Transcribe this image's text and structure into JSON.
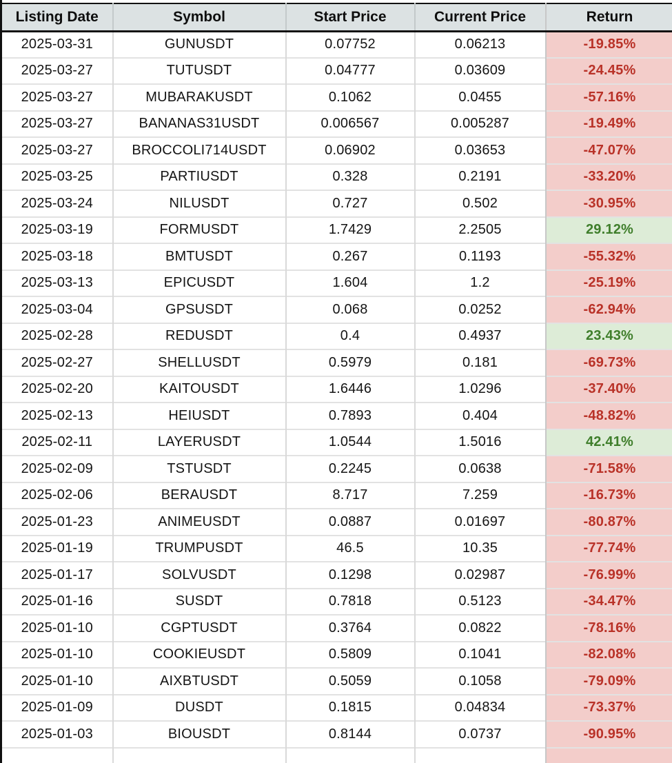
{
  "colors": {
    "header_bg": "#dce2e3",
    "negative_bg": "#f3cdca",
    "negative_text": "#b93228",
    "positive_bg": "#ddecd7",
    "positive_text": "#3f7e2b",
    "grid_line": "#d9d9d9",
    "header_border": "#111111",
    "body_text": "#141414"
  },
  "table": {
    "columns": [
      {
        "id": "listing_date",
        "label": "Listing Date"
      },
      {
        "id": "symbol",
        "label": "Symbol"
      },
      {
        "id": "start_price",
        "label": "Start Price"
      },
      {
        "id": "current_price",
        "label": "Current Price"
      },
      {
        "id": "return",
        "label": "Return"
      }
    ],
    "rows": [
      {
        "listing_date": "2025-03-31",
        "symbol": "GUNUSDT",
        "start_price": "0.07752",
        "current_price": "0.06213",
        "return": "-19.85%",
        "direction": "negative"
      },
      {
        "listing_date": "2025-03-27",
        "symbol": "TUTUSDT",
        "start_price": "0.04777",
        "current_price": "0.03609",
        "return": "-24.45%",
        "direction": "negative"
      },
      {
        "listing_date": "2025-03-27",
        "symbol": "MUBARAKUSDT",
        "start_price": "0.1062",
        "current_price": "0.0455",
        "return": "-57.16%",
        "direction": "negative"
      },
      {
        "listing_date": "2025-03-27",
        "symbol": "BANANAS31USDT",
        "start_price": "0.006567",
        "current_price": "0.005287",
        "return": "-19.49%",
        "direction": "negative"
      },
      {
        "listing_date": "2025-03-27",
        "symbol": "BROCCOLI714USDT",
        "start_price": "0.06902",
        "current_price": "0.03653",
        "return": "-47.07%",
        "direction": "negative"
      },
      {
        "listing_date": "2025-03-25",
        "symbol": "PARTIUSDT",
        "start_price": "0.328",
        "current_price": "0.2191",
        "return": "-33.20%",
        "direction": "negative"
      },
      {
        "listing_date": "2025-03-24",
        "symbol": "NILUSDT",
        "start_price": "0.727",
        "current_price": "0.502",
        "return": "-30.95%",
        "direction": "negative"
      },
      {
        "listing_date": "2025-03-19",
        "symbol": "FORMUSDT",
        "start_price": "1.7429",
        "current_price": "2.2505",
        "return": "29.12%",
        "direction": "positive"
      },
      {
        "listing_date": "2025-03-18",
        "symbol": "BMTUSDT",
        "start_price": "0.267",
        "current_price": "0.1193",
        "return": "-55.32%",
        "direction": "negative"
      },
      {
        "listing_date": "2025-03-13",
        "symbol": "EPICUSDT",
        "start_price": "1.604",
        "current_price": "1.2",
        "return": "-25.19%",
        "direction": "negative"
      },
      {
        "listing_date": "2025-03-04",
        "symbol": "GPSUSDT",
        "start_price": "0.068",
        "current_price": "0.0252",
        "return": "-62.94%",
        "direction": "negative"
      },
      {
        "listing_date": "2025-02-28",
        "symbol": "REDUSDT",
        "start_price": "0.4",
        "current_price": "0.4937",
        "return": "23.43%",
        "direction": "positive"
      },
      {
        "listing_date": "2025-02-27",
        "symbol": "SHELLUSDT",
        "start_price": "0.5979",
        "current_price": "0.181",
        "return": "-69.73%",
        "direction": "negative"
      },
      {
        "listing_date": "2025-02-20",
        "symbol": "KAITOUSDT",
        "start_price": "1.6446",
        "current_price": "1.0296",
        "return": "-37.40%",
        "direction": "negative"
      },
      {
        "listing_date": "2025-02-13",
        "symbol": "HEIUSDT",
        "start_price": "0.7893",
        "current_price": "0.404",
        "return": "-48.82%",
        "direction": "negative"
      },
      {
        "listing_date": "2025-02-11",
        "symbol": "LAYERUSDT",
        "start_price": "1.0544",
        "current_price": "1.5016",
        "return": "42.41%",
        "direction": "positive"
      },
      {
        "listing_date": "2025-02-09",
        "symbol": "TSTUSDT",
        "start_price": "0.2245",
        "current_price": "0.0638",
        "return": "-71.58%",
        "direction": "negative"
      },
      {
        "listing_date": "2025-02-06",
        "symbol": "BERAUSDT",
        "start_price": "8.717",
        "current_price": "7.259",
        "return": "-16.73%",
        "direction": "negative"
      },
      {
        "listing_date": "2025-01-23",
        "symbol": "ANIMEUSDT",
        "start_price": "0.0887",
        "current_price": "0.01697",
        "return": "-80.87%",
        "direction": "negative"
      },
      {
        "listing_date": "2025-01-19",
        "symbol": "TRUMPUSDT",
        "start_price": "46.5",
        "current_price": "10.35",
        "return": "-77.74%",
        "direction": "negative"
      },
      {
        "listing_date": "2025-01-17",
        "symbol": "SOLVUSDT",
        "start_price": "0.1298",
        "current_price": "0.02987",
        "return": "-76.99%",
        "direction": "negative"
      },
      {
        "listing_date": "2025-01-16",
        "symbol": "SUSDT",
        "start_price": "0.7818",
        "current_price": "0.5123",
        "return": "-34.47%",
        "direction": "negative"
      },
      {
        "listing_date": "2025-01-10",
        "symbol": "CGPTUSDT",
        "start_price": "0.3764",
        "current_price": "0.0822",
        "return": "-78.16%",
        "direction": "negative"
      },
      {
        "listing_date": "2025-01-10",
        "symbol": "COOKIEUSDT",
        "start_price": "0.5809",
        "current_price": "0.1041",
        "return": "-82.08%",
        "direction": "negative"
      },
      {
        "listing_date": "2025-01-10",
        "symbol": "AIXBTUSDT",
        "start_price": "0.5059",
        "current_price": "0.1058",
        "return": "-79.09%",
        "direction": "negative"
      },
      {
        "listing_date": "2025-01-09",
        "symbol": "DUSDT",
        "start_price": "0.1815",
        "current_price": "0.04834",
        "return": "-73.37%",
        "direction": "negative"
      },
      {
        "listing_date": "2025-01-03",
        "symbol": "BIOUSDT",
        "start_price": "0.8144",
        "current_price": "0.0737",
        "return": "-90.95%",
        "direction": "negative"
      }
    ]
  }
}
